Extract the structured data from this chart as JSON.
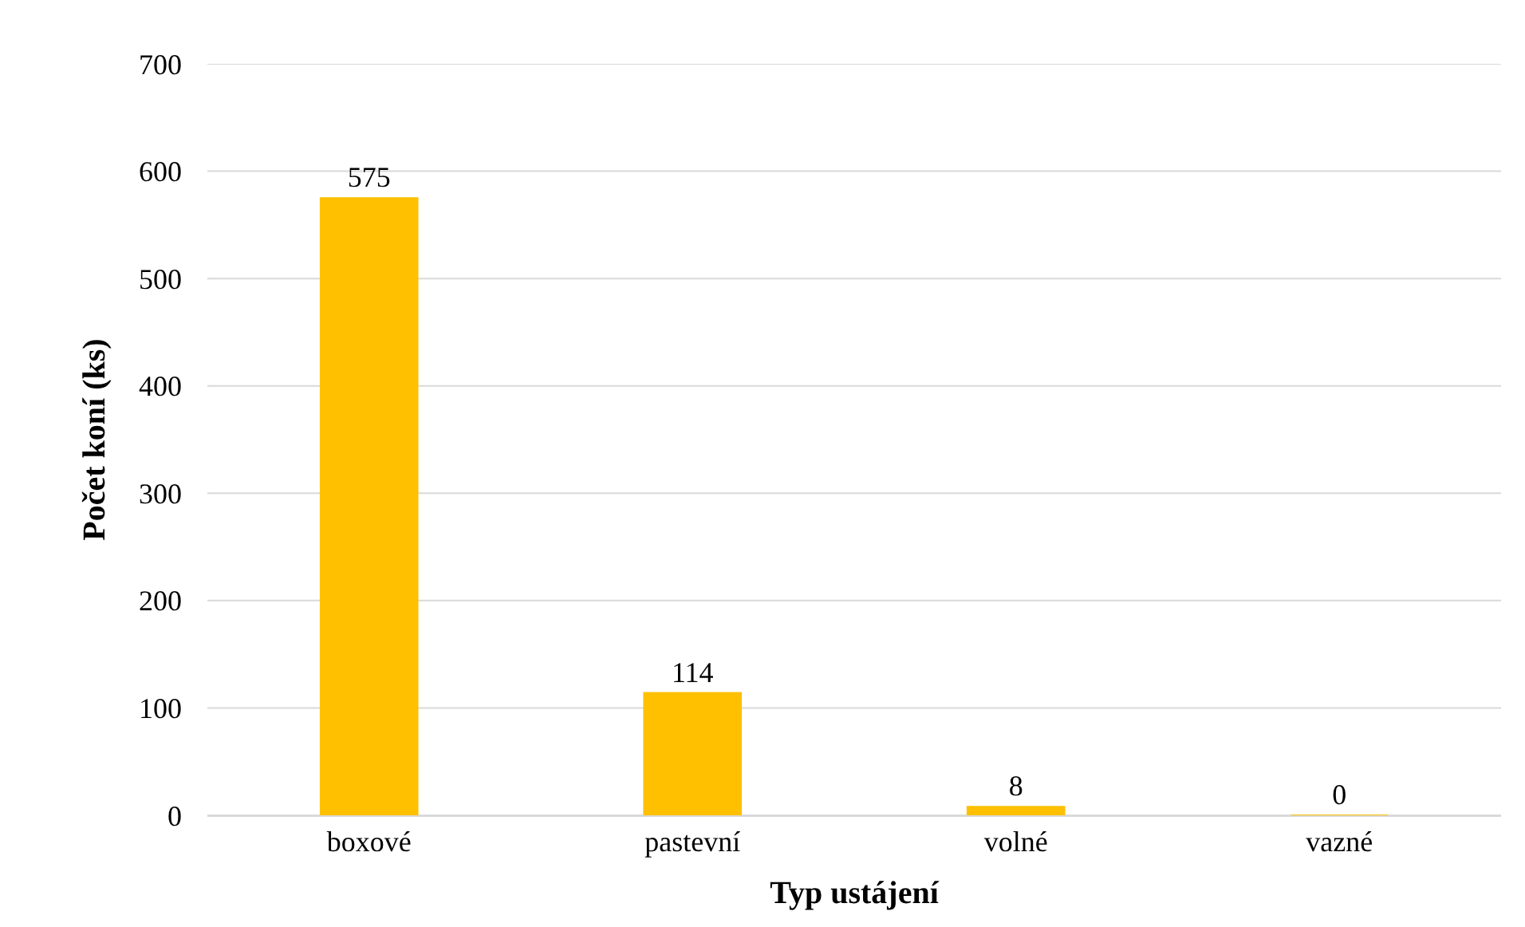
{
  "chart_data": {
    "type": "bar",
    "xlabel": "Typ ustájení",
    "ylabel": "Počet koní (ks)",
    "categories": [
      "boxové",
      "pastevní",
      "volné",
      "vazné"
    ],
    "values": [
      575,
      114,
      8,
      0
    ],
    "color": "#ffc000",
    "ylim": [
      0,
      700
    ],
    "yticks": [
      0,
      100,
      200,
      300,
      400,
      500,
      600,
      700
    ],
    "grid": "y",
    "data_labels": true
  }
}
